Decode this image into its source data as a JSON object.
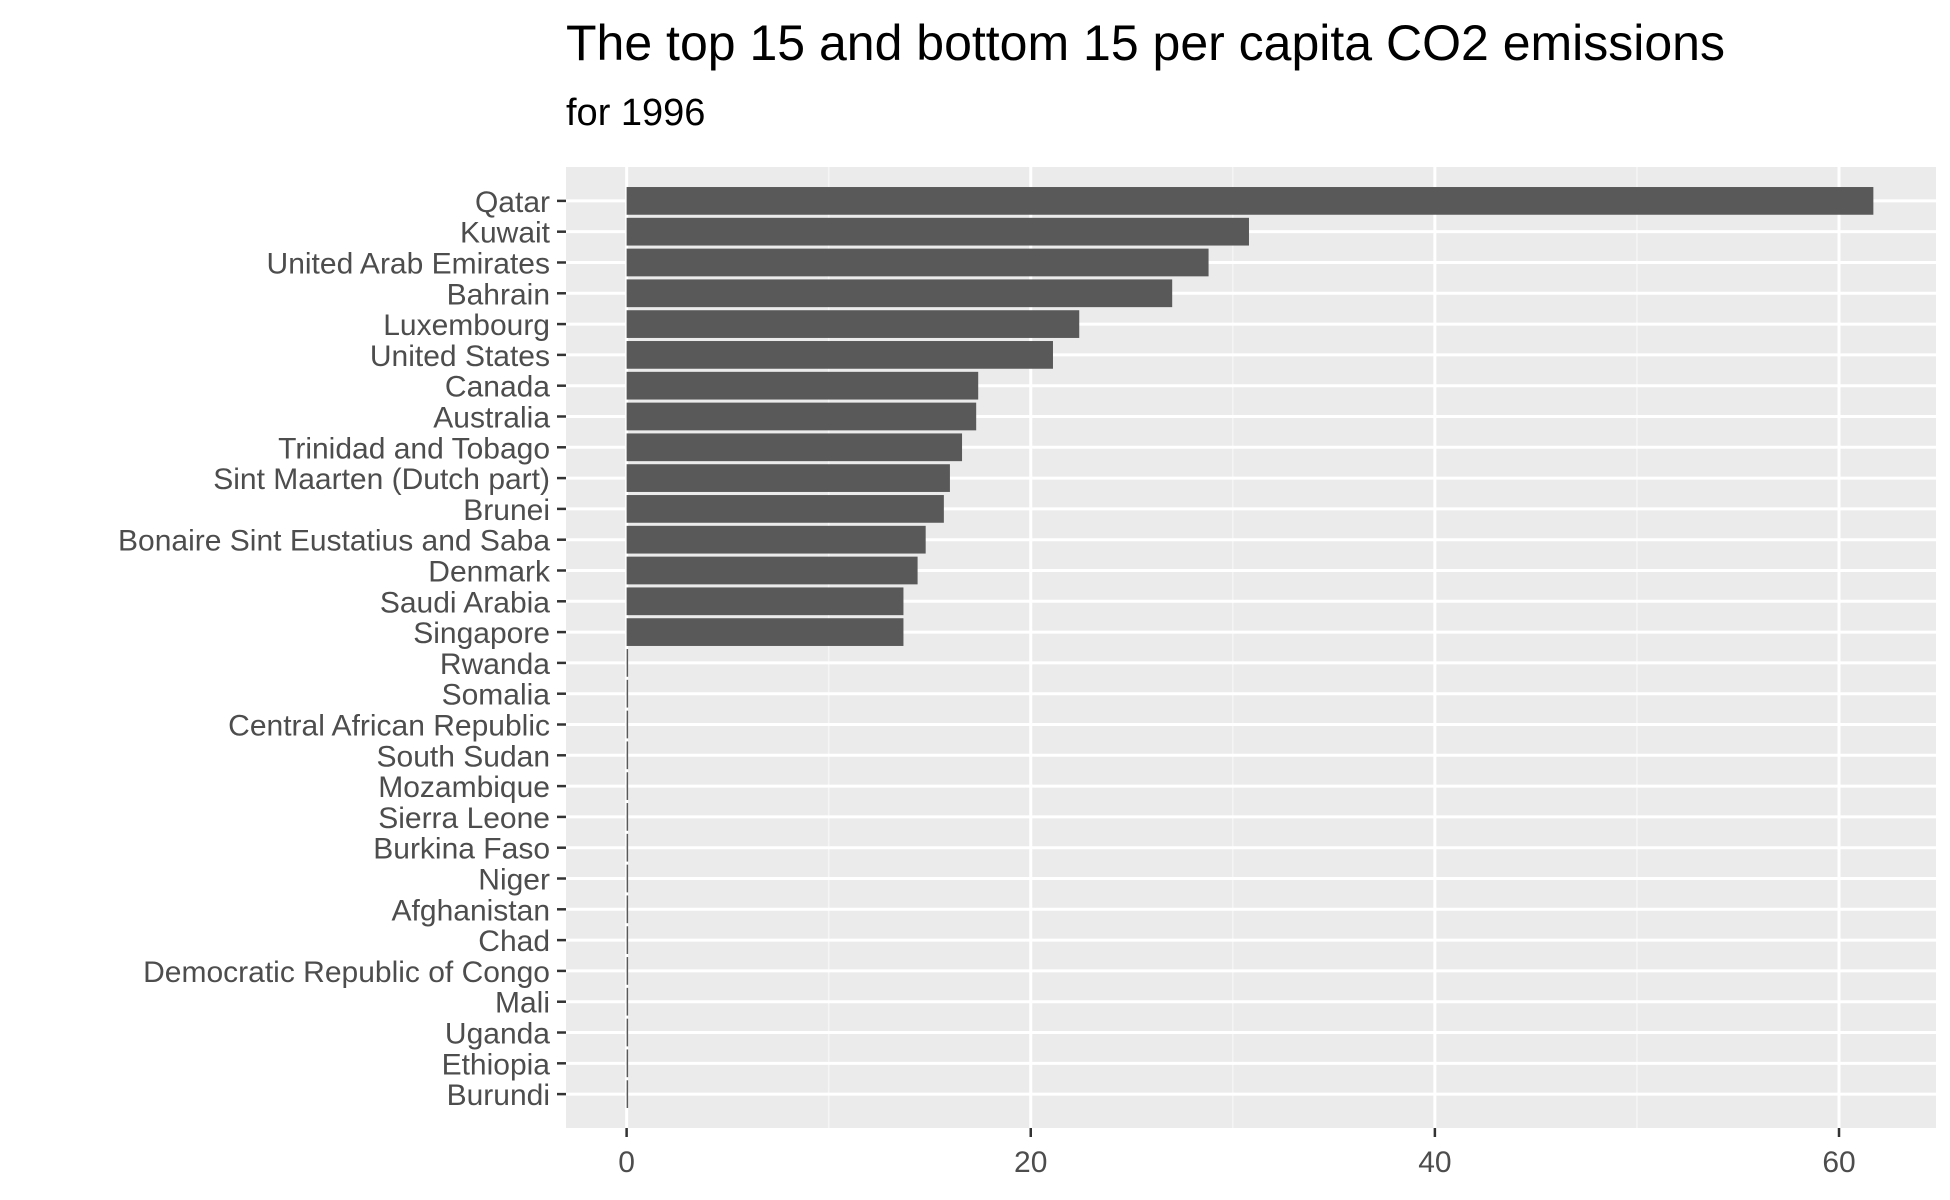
{
  "chart_data": {
    "type": "bar",
    "orientation": "horizontal",
    "title": "The top 15 and bottom 15 per capita CO2 emissions",
    "subtitle": "for 1996",
    "xlabel": "",
    "ylabel": "",
    "categories": [
      "Qatar",
      "Kuwait",
      "United Arab Emirates",
      "Bahrain",
      "Luxembourg",
      "United States",
      "Canada",
      "Australia",
      "Trinidad and Tobago",
      "Sint Maarten (Dutch part)",
      "Brunei",
      "Bonaire Sint Eustatius and Saba",
      "Denmark",
      "Saudi Arabia",
      "Singapore",
      "Rwanda",
      "Somalia",
      "Central African Republic",
      "South Sudan",
      "Mozambique",
      "Sierra Leone",
      "Burkina Faso",
      "Niger",
      "Afghanistan",
      "Chad",
      "Democratic Republic of Congo",
      "Mali",
      "Uganda",
      "Ethiopia",
      "Burundi"
    ],
    "values": [
      61.7,
      30.8,
      28.8,
      27.0,
      22.4,
      21.1,
      17.4,
      17.3,
      16.6,
      16.0,
      15.7,
      14.8,
      14.4,
      13.7,
      13.7,
      0.07,
      0.07,
      0.07,
      0.07,
      0.07,
      0.07,
      0.06,
      0.06,
      0.06,
      0.05,
      0.05,
      0.04,
      0.04,
      0.04,
      0.03
    ],
    "xlim": [
      -3.0,
      64.8
    ],
    "xticks": [
      0,
      20,
      40,
      60
    ],
    "xtick_labels": [
      "0",
      "20",
      "40",
      "60"
    ],
    "grid": true,
    "colors": {
      "panel_background": "#ebebeb",
      "grid_major": "#ffffff",
      "grid_minor": "#f5f5f5",
      "bar_fill": "#595959",
      "tick_text": "#4d4d4d",
      "tick_mark": "#333333"
    }
  }
}
